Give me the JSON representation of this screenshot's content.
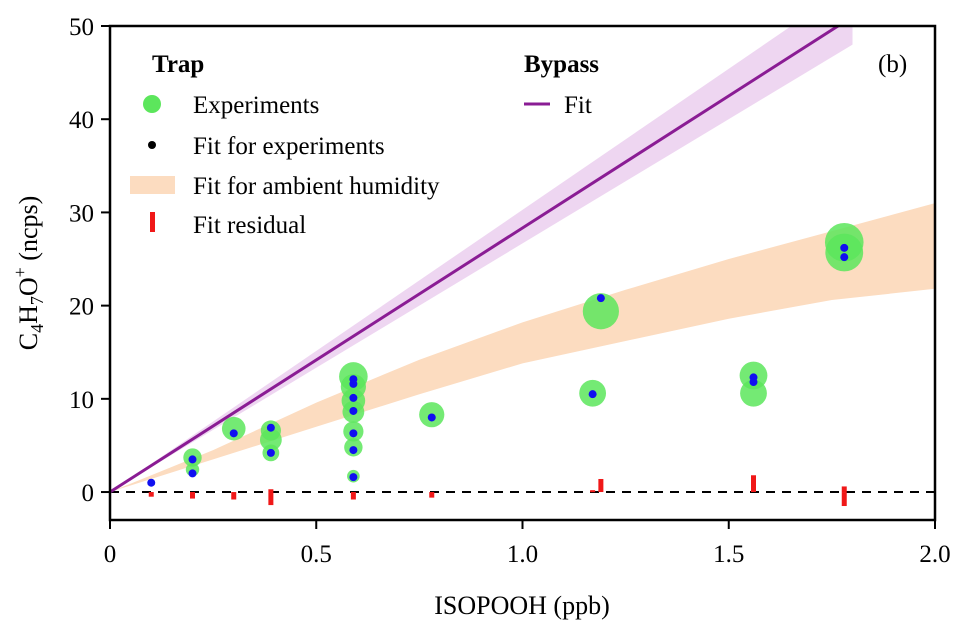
{
  "chart_data": {
    "type": "scatter",
    "panel_label": "(b)",
    "xlabel": "ISOPOOH (ppb)",
    "ylabel": {
      "base": "C",
      "sub1": "4",
      "mid1": "H",
      "sub2": "7",
      "mid2": "O",
      "sup": "+",
      "unit": " (ncps)"
    },
    "xlim": [
      0,
      2.0
    ],
    "ylim": [
      -3,
      50
    ],
    "x_ticks": [
      0,
      0.5,
      1.0,
      1.5,
      2.0
    ],
    "x_tick_labels": [
      "0",
      "0.5",
      "1.0",
      "1.5",
      "2.0"
    ],
    "y_ticks": [
      0,
      10,
      20,
      30,
      40,
      50
    ],
    "y_tick_labels": [
      "0",
      "10",
      "20",
      "30",
      "40",
      "50"
    ],
    "grid": false,
    "legend": {
      "placement": "top-left",
      "trap_header": "Trap",
      "bypass_header": "Bypass",
      "items": {
        "experiments": "Experiments",
        "fit_experiments": "Fit for experiments",
        "fit_ambient": "Fit for ambient humidity",
        "fit_residual": "Fit residual",
        "bypass_fit": "Fit"
      }
    },
    "colors": {
      "experiments": "#5ce65c",
      "fit_points": "#1010f0",
      "ambient_band": "#fcdcc0",
      "bypass_line": "#8a1c94",
      "bypass_band": "#e8c8ec",
      "residual": "#f01818",
      "zero_line": "#000000"
    },
    "bypass_fit": {
      "points": [
        [
          0,
          0
        ],
        [
          1.8,
          51
        ]
      ],
      "band_upper": [
        [
          0,
          0
        ],
        [
          1.8,
          54.5
        ]
      ],
      "band_lower": [
        [
          0,
          0
        ],
        [
          1.8,
          48
        ]
      ]
    },
    "ambient_band": {
      "upper": [
        [
          0,
          0
        ],
        [
          0.25,
          4.5
        ],
        [
          0.5,
          9.6
        ],
        [
          0.75,
          14.2
        ],
        [
          1.0,
          18.2
        ],
        [
          1.25,
          21.7
        ],
        [
          1.5,
          25.0
        ],
        [
          1.75,
          28.0
        ],
        [
          2.0,
          31.0
        ]
      ],
      "lower": [
        [
          0,
          0
        ],
        [
          0.25,
          3.5
        ],
        [
          0.5,
          7.0
        ],
        [
          0.75,
          10.5
        ],
        [
          1.0,
          13.8
        ],
        [
          1.25,
          16.2
        ],
        [
          1.5,
          18.6
        ],
        [
          1.75,
          20.6
        ],
        [
          2.0,
          21.8
        ]
      ]
    },
    "experiments": [
      {
        "x": 0.2,
        "y": 3.7,
        "size": 2.2
      },
      {
        "x": 0.2,
        "y": 2.4,
        "size": 1.6
      },
      {
        "x": 0.3,
        "y": 6.8,
        "size": 2.8
      },
      {
        "x": 0.39,
        "y": 6.6,
        "size": 2.4
      },
      {
        "x": 0.39,
        "y": 5.6,
        "size": 2.6
      },
      {
        "x": 0.39,
        "y": 4.2,
        "size": 2.0
      },
      {
        "x": 0.59,
        "y": 12.4,
        "size": 3.4
      },
      {
        "x": 0.59,
        "y": 11.3,
        "size": 3.0
      },
      {
        "x": 0.59,
        "y": 9.8,
        "size": 2.8
      },
      {
        "x": 0.59,
        "y": 8.6,
        "size": 2.6
      },
      {
        "x": 0.59,
        "y": 6.5,
        "size": 2.4
      },
      {
        "x": 0.59,
        "y": 4.8,
        "size": 2.2
      },
      {
        "x": 0.59,
        "y": 1.7,
        "size": 1.5
      },
      {
        "x": 0.78,
        "y": 8.3,
        "size": 3.0
      },
      {
        "x": 1.17,
        "y": 10.6,
        "size": 3.2
      },
      {
        "x": 1.19,
        "y": 19.4,
        "size": 4.3
      },
      {
        "x": 1.56,
        "y": 12.5,
        "size": 3.3
      },
      {
        "x": 1.56,
        "y": 10.6,
        "size": 3.2
      },
      {
        "x": 1.78,
        "y": 26.8,
        "size": 4.6
      },
      {
        "x": 1.78,
        "y": 25.7,
        "size": 4.5
      }
    ],
    "fit_for_experiments": [
      {
        "x": 0.1,
        "y": 1.0
      },
      {
        "x": 0.2,
        "y": 3.5
      },
      {
        "x": 0.2,
        "y": 2.0
      },
      {
        "x": 0.3,
        "y": 6.3
      },
      {
        "x": 0.39,
        "y": 6.9
      },
      {
        "x": 0.39,
        "y": 4.2
      },
      {
        "x": 0.59,
        "y": 12.1
      },
      {
        "x": 0.59,
        "y": 11.6
      },
      {
        "x": 0.59,
        "y": 10.1
      },
      {
        "x": 0.59,
        "y": 8.7
      },
      {
        "x": 0.59,
        "y": 6.3
      },
      {
        "x": 0.59,
        "y": 4.5
      },
      {
        "x": 0.59,
        "y": 1.6
      },
      {
        "x": 0.78,
        "y": 8.0
      },
      {
        "x": 1.17,
        "y": 10.5
      },
      {
        "x": 1.19,
        "y": 20.8
      },
      {
        "x": 1.56,
        "y": 12.3
      },
      {
        "x": 1.56,
        "y": 11.8
      },
      {
        "x": 1.78,
        "y": 26.2
      },
      {
        "x": 1.78,
        "y": 25.2
      }
    ],
    "fit_residuals": [
      {
        "x": 0.1,
        "y0": 0,
        "y1": -0.5
      },
      {
        "x": 0.2,
        "y0": 0,
        "y1": -0.7
      },
      {
        "x": 0.3,
        "y0": 0,
        "y1": -0.8
      },
      {
        "x": 0.39,
        "y0": 0,
        "y1": -1.4
      },
      {
        "x": 0.39,
        "y0": 0,
        "y1": 0.3
      },
      {
        "x": 0.59,
        "y0": 0,
        "y1": -0.8
      },
      {
        "x": 0.78,
        "y0": 0,
        "y1": -0.6
      },
      {
        "x": 1.17,
        "y0": 0,
        "y1": 0.2
      },
      {
        "x": 1.19,
        "y0": 0,
        "y1": 1.4
      },
      {
        "x": 1.56,
        "y0": 0,
        "y1": 1.8
      },
      {
        "x": 1.78,
        "y0": 0,
        "y1": 0.6
      },
      {
        "x": 1.78,
        "y0": 0,
        "y1": -1.5
      }
    ]
  }
}
